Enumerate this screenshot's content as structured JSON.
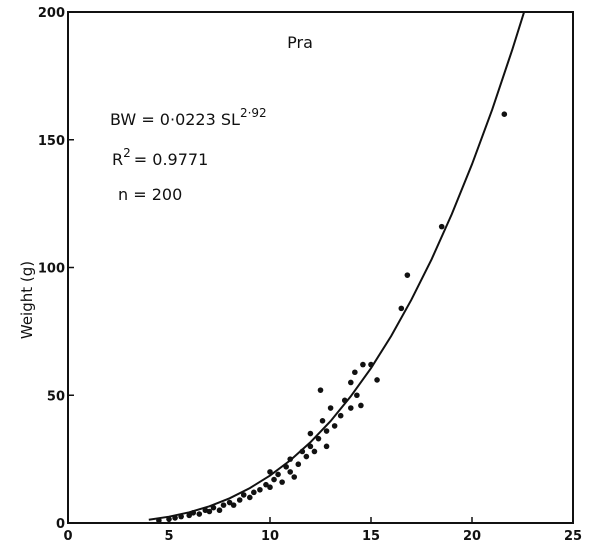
{
  "chart_data": {
    "type": "scatter",
    "title": "Pra",
    "equation": "BW = 0·0223 SL",
    "equation_exponent": "2·92",
    "r2_label": "R",
    "r2_exponent": "2",
    "r2_value": "= 0.9771",
    "n_label": "n  =  200",
    "ylabel": "Weight (g)",
    "color": "#111111",
    "x": [
      4.5,
      5,
      5.3,
      5.6,
      6,
      6.2,
      6.5,
      6.8,
      7,
      7.2,
      7.5,
      7.7,
      8,
      8.2,
      8.5,
      8.7,
      9,
      9.2,
      9.5,
      9.8,
      10,
      10,
      10.2,
      10.4,
      10.6,
      10.8,
      11,
      11,
      11.2,
      11.4,
      11.6,
      11.8,
      12,
      12,
      12.2,
      12.4,
      12.5,
      12.6,
      12.8,
      12.8,
      13,
      13.2,
      13.5,
      13.7,
      14,
      14,
      14.2,
      14.3,
      14.5,
      14.6,
      15,
      15.3,
      16.5,
      16.8,
      18.5,
      21.6
    ],
    "values": [
      1,
      1.5,
      2,
      2.5,
      3,
      4,
      3.5,
      5,
      4.5,
      6,
      5,
      7,
      8,
      7,
      9,
      11,
      10,
      12,
      13,
      15,
      14,
      20,
      17,
      19,
      16,
      22,
      20,
      25,
      18,
      23,
      28,
      26,
      30,
      35,
      28,
      33,
      52,
      40,
      30,
      36,
      45,
      38,
      42,
      48,
      45,
      55,
      59,
      50,
      46,
      62,
      62,
      56,
      84,
      97,
      116,
      160
    ],
    "fit": {
      "type": "line",
      "x": [
        4,
        5,
        6,
        7,
        8,
        9,
        10,
        11,
        12,
        13,
        14,
        15,
        16,
        17,
        18,
        19,
        20,
        21,
        22,
        22.6
      ],
      "values": [
        1.28,
        2.45,
        4.17,
        6.54,
        9.67,
        13.64,
        18.55,
        24.5,
        31.6,
        39.9,
        49.6,
        60.6,
        73.2,
        87.4,
        103.2,
        120.9,
        140.4,
        161.8,
        185.4,
        200.5
      ]
    },
    "xlim": [
      0,
      25
    ],
    "ylim": [
      0,
      200
    ],
    "xticks": [
      0,
      5,
      10,
      15,
      20,
      25
    ],
    "yticks": [
      0,
      50,
      100,
      150,
      200
    ]
  }
}
